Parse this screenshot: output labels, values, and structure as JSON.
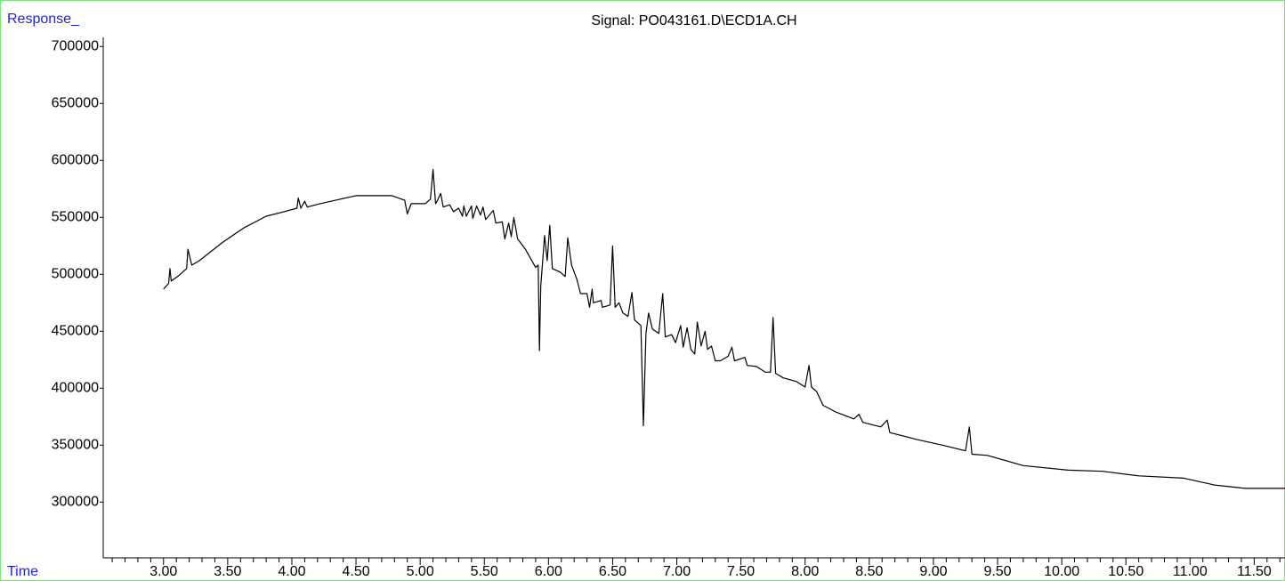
{
  "chart_data": {
    "type": "line",
    "title": "Signal: PO043161.D\\ECD1A.CH",
    "y_label": "Response_",
    "x_label": "Time",
    "color": "#000000",
    "xlim": [
      2.53,
      11.74
    ],
    "ylim": [
      251000,
      708000
    ],
    "yticks": [
      300000,
      350000,
      400000,
      450000,
      500000,
      550000,
      600000,
      650000,
      700000
    ],
    "xticks": [
      {
        "value": 3,
        "label": "3.00"
      },
      {
        "value": 3.5,
        "label": "3.50"
      },
      {
        "value": 4,
        "label": "4.00"
      },
      {
        "value": 4.5,
        "label": "4.50"
      },
      {
        "value": 5,
        "label": "5.00"
      },
      {
        "value": 5.5,
        "label": "5.50"
      },
      {
        "value": 6,
        "label": "6.00"
      },
      {
        "value": 6.5,
        "label": "6.50"
      },
      {
        "value": 7,
        "label": "7.00"
      },
      {
        "value": 7.5,
        "label": "7.50"
      },
      {
        "value": 8,
        "label": "8.00"
      },
      {
        "value": 8.5,
        "label": "8.50"
      },
      {
        "value": 9,
        "label": "9.00"
      },
      {
        "value": 9.5,
        "label": "9.50"
      },
      {
        "value": 10,
        "label": "10.00"
      },
      {
        "value": 10.5,
        "label": "10.50"
      },
      {
        "value": 11,
        "label": "11.00"
      },
      {
        "value": 11.5,
        "label": "11.50"
      }
    ],
    "xminorticks": [
      2.6,
      2.7,
      2.8,
      2.9,
      3.1,
      3.2,
      3.3,
      3.4,
      3.6,
      3.7,
      3.8,
      3.9,
      4.1,
      4.2,
      4.3,
      4.4,
      4.6,
      4.7,
      4.8,
      4.9,
      5.1,
      5.2,
      5.3,
      5.4,
      5.6,
      5.7,
      5.8,
      5.9,
      6.1,
      6.2,
      6.3,
      6.4,
      6.6,
      6.7,
      6.8,
      6.9,
      7.1,
      7.2,
      7.3,
      7.4,
      7.6,
      7.7,
      7.8,
      7.9,
      8.1,
      8.2,
      8.3,
      8.4,
      8.6,
      8.7,
      8.8,
      8.9,
      9.1,
      9.2,
      9.3,
      9.4,
      9.6,
      9.7,
      9.8,
      9.9,
      10.1,
      10.2,
      10.3,
      10.4,
      10.6,
      10.7,
      10.8,
      10.9,
      11.1,
      11.2,
      11.3,
      11.4,
      11.6,
      11.7
    ],
    "x": [
      3.0,
      3.04,
      3.05,
      3.06,
      3.11,
      3.18,
      3.19,
      3.22,
      3.28,
      3.46,
      3.63,
      3.8,
      3.94,
      4.04,
      4.05,
      4.07,
      4.1,
      4.12,
      4.22,
      4.5,
      4.78,
      4.88,
      4.9,
      4.93,
      5.04,
      5.08,
      5.1,
      5.12,
      5.14,
      5.16,
      5.18,
      5.23,
      5.26,
      5.3,
      5.33,
      5.34,
      5.36,
      5.4,
      5.41,
      5.44,
      5.47,
      5.49,
      5.51,
      5.57,
      5.59,
      5.64,
      5.66,
      5.69,
      5.71,
      5.73,
      5.76,
      5.82,
      5.87,
      5.9,
      5.92,
      5.93,
      5.94,
      5.97,
      5.99,
      6.01,
      6.03,
      6.09,
      6.13,
      6.15,
      6.18,
      6.22,
      6.25,
      6.3,
      6.32,
      6.34,
      6.35,
      6.41,
      6.42,
      6.48,
      6.5,
      6.52,
      6.55,
      6.58,
      6.62,
      6.65,
      6.67,
      6.72,
      6.74,
      6.76,
      6.78,
      6.81,
      6.86,
      6.89,
      6.91,
      6.96,
      6.99,
      7.03,
      7.05,
      7.08,
      7.11,
      7.14,
      7.16,
      7.19,
      7.22,
      7.24,
      7.27,
      7.3,
      7.34,
      7.4,
      7.43,
      7.45,
      7.53,
      7.55,
      7.62,
      7.69,
      7.73,
      7.75,
      7.77,
      7.83,
      7.93,
      8.0,
      8.03,
      8.05,
      8.09,
      8.14,
      8.24,
      8.38,
      8.42,
      8.45,
      8.59,
      8.64,
      8.66,
      8.87,
      9.07,
      9.25,
      9.28,
      9.3,
      9.42,
      9.7,
      10.05,
      10.32,
      10.6,
      10.95,
      11.19,
      11.43,
      11.74
    ],
    "values": [
      487000,
      492000,
      505000,
      494000,
      498000,
      505000,
      522000,
      508000,
      512000,
      528000,
      541000,
      551000,
      555000,
      558000,
      567000,
      558000,
      564000,
      559000,
      562000,
      569000,
      569000,
      565000,
      553000,
      562000,
      562000,
      566000,
      592000,
      562000,
      566000,
      571000,
      559000,
      561000,
      555000,
      558000,
      551000,
      560000,
      551000,
      560000,
      549000,
      560000,
      552000,
      559000,
      548000,
      556000,
      545000,
      546000,
      531000,
      545000,
      533000,
      550000,
      531000,
      522000,
      512000,
      506000,
      508000,
      433000,
      490000,
      534000,
      512000,
      543000,
      505000,
      502000,
      498000,
      532000,
      508000,
      496000,
      483000,
      483000,
      471000,
      487000,
      475000,
      477000,
      471000,
      473000,
      525000,
      471000,
      475000,
      466000,
      463000,
      484000,
      460000,
      455000,
      367000,
      448000,
      466000,
      452000,
      448000,
      483000,
      445000,
      447000,
      440000,
      455000,
      436000,
      453000,
      434000,
      430000,
      458000,
      437000,
      450000,
      434000,
      437000,
      424000,
      424000,
      428000,
      436000,
      424000,
      427000,
      420000,
      419000,
      414000,
      414000,
      462000,
      413000,
      409000,
      406000,
      401000,
      420000,
      401000,
      397000,
      385000,
      379000,
      373000,
      377000,
      370000,
      366000,
      372000,
      361000,
      355000,
      350000,
      345000,
      366000,
      342000,
      341000,
      332000,
      328000,
      327000,
      323000,
      321000,
      315000,
      312000,
      312000
    ]
  }
}
